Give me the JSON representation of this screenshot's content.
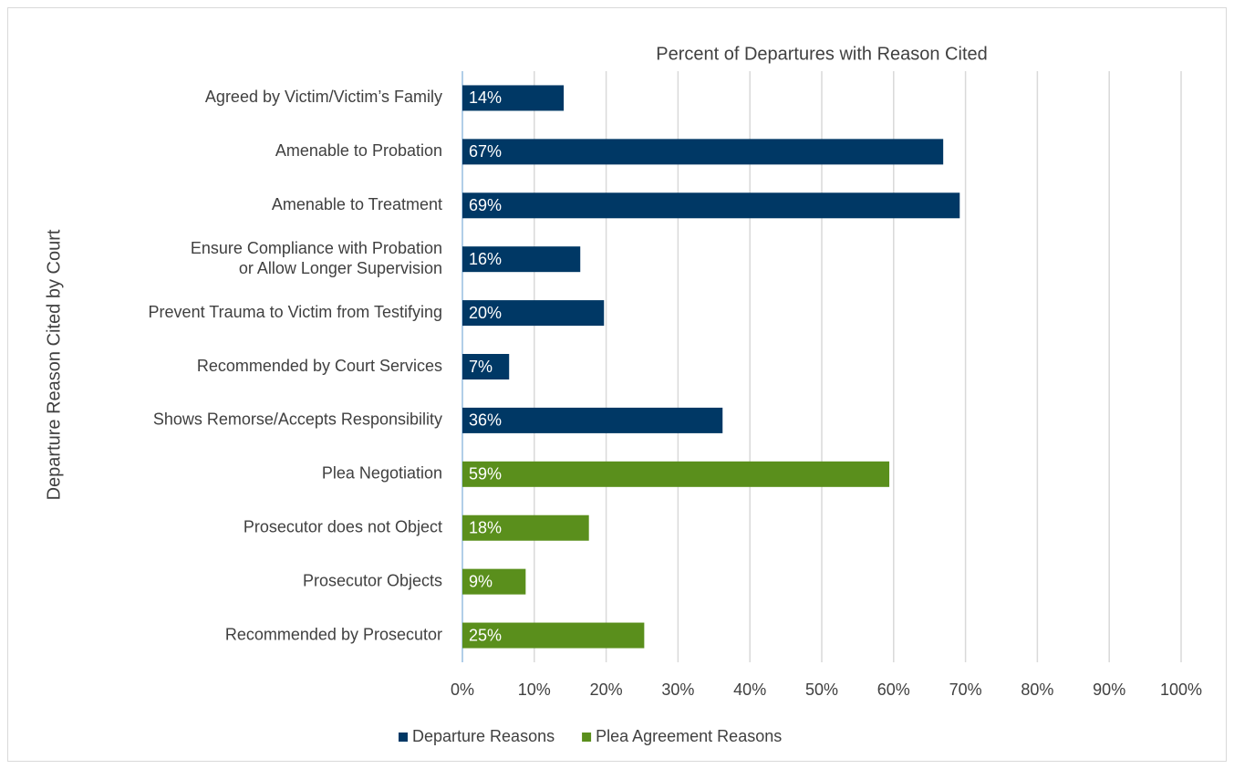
{
  "chart_data": {
    "type": "barh",
    "title": "Percent of Departures with Reason Cited",
    "y_label": "Departure Reason Cited by Court",
    "categories": [
      "Agreed by Victim/Victim’s Family",
      "Amenable to Probation",
      "Amenable to Treatment",
      "Ensure Compliance with Probation\nor Allow Longer Supervision",
      "Prevent Trauma to Victim from Testifying",
      "Recommended by Court Services",
      "Shows Remorse/Accepts Responsibility",
      "Plea Negotiation",
      "Prosecutor does not Object",
      "Prosecutor Objects",
      "Recommended by Prosecutor"
    ],
    "series": [
      {
        "name": "Departure Reasons",
        "color": "#003865",
        "values": [
          14.1,
          66.9,
          69.2,
          16.4,
          19.7,
          6.5,
          36.2,
          null,
          null,
          null,
          null
        ],
        "value_labels": [
          "14%",
          "67%",
          "69%",
          "16%",
          "20%",
          "7%",
          "36%",
          null,
          null,
          null,
          null
        ]
      },
      {
        "name": "Plea Agreement Reasons",
        "color": "#5a8f1c",
        "values": [
          null,
          null,
          null,
          null,
          null,
          null,
          null,
          59.4,
          17.6,
          8.8,
          25.3
        ],
        "value_labels": [
          null,
          null,
          null,
          null,
          null,
          null,
          null,
          "59%",
          "18%",
          "9%",
          "25%"
        ]
      }
    ],
    "xlim": [
      0,
      100
    ],
    "xticks": [
      {
        "value": 0,
        "label": "0%"
      },
      {
        "value": 10,
        "label": "10%"
      },
      {
        "value": 20,
        "label": "20%"
      },
      {
        "value": 30,
        "label": "30%"
      },
      {
        "value": 40,
        "label": "40%"
      },
      {
        "value": 50,
        "label": "50%"
      },
      {
        "value": 60,
        "label": "60%"
      },
      {
        "value": 70,
        "label": "70%"
      },
      {
        "value": 80,
        "label": "80%"
      },
      {
        "value": 90,
        "label": "90%"
      },
      {
        "value": 100,
        "label": "100%"
      }
    ],
    "grid": true,
    "legend": "bottom"
  }
}
